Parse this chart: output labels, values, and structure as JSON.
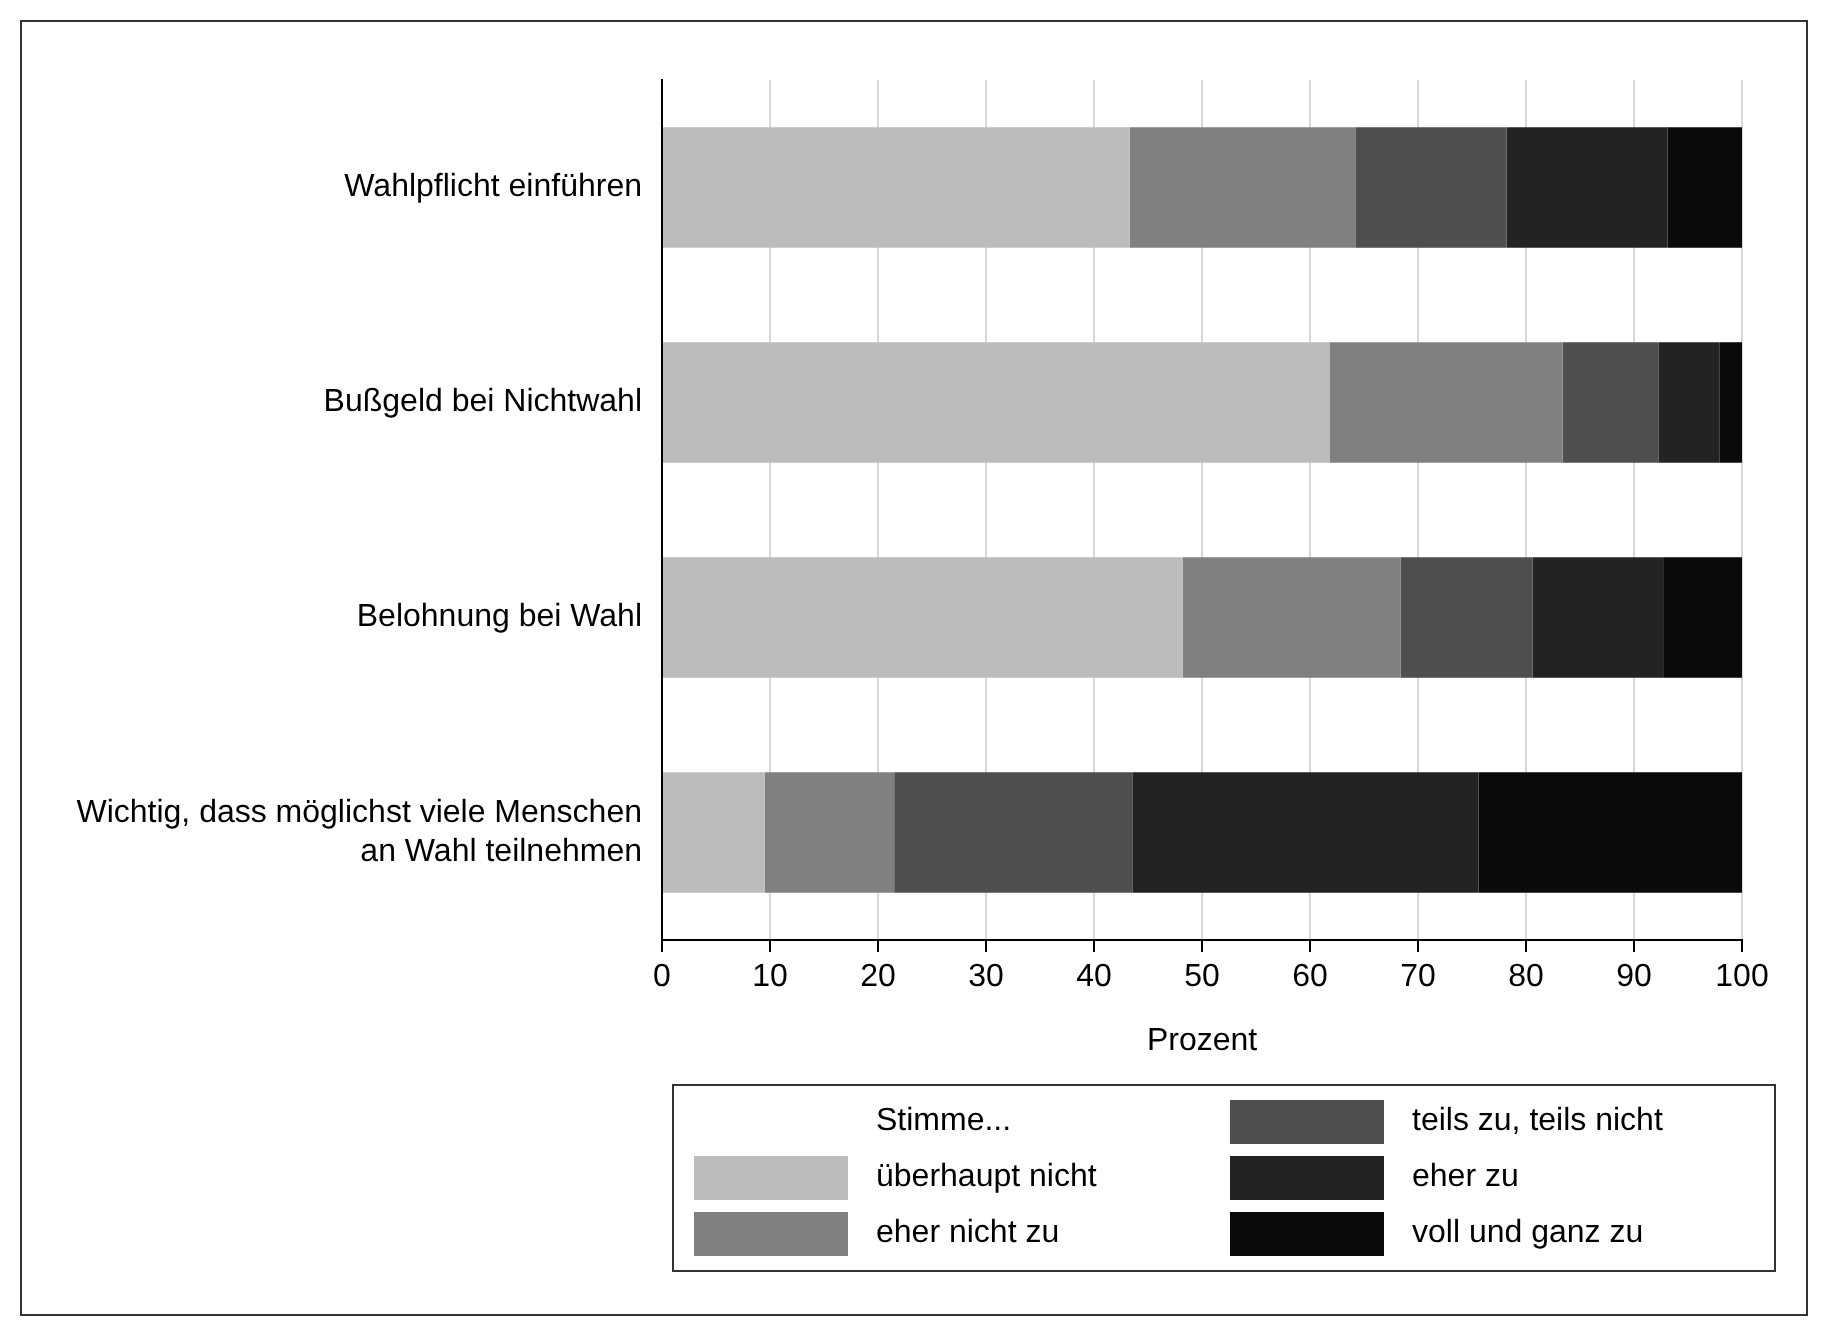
{
  "chart_data": {
    "type": "bar",
    "orientation": "horizontal",
    "stacked": true,
    "categories": [
      "Wahlpflicht einführen",
      "Bußgeld bei Nichtwahl",
      "Belohnung bei Wahl",
      "Wichtig, dass möglichst viele Menschen an Wahl teilnehmen"
    ],
    "series": [
      {
        "name": "überhaupt nicht",
        "color": "#bcbcbc",
        "values": [
          43.3,
          61.8,
          48.2,
          9.5
        ]
      },
      {
        "name": "eher nicht zu",
        "color": "#808080",
        "values": [
          20.9,
          21.6,
          20.2,
          12.0
        ]
      },
      {
        "name": "teils zu, teils nicht",
        "color": "#4e4e4e",
        "values": [
          14.0,
          8.9,
          12.2,
          22.1
        ]
      },
      {
        "name": "eher zu",
        "color": "#232323",
        "values": [
          14.9,
          5.6,
          12.1,
          32.0
        ]
      },
      {
        "name": "voll und ganz zu",
        "color": "#0a0a0a",
        "values": [
          6.9,
          2.1,
          7.3,
          24.4
        ]
      }
    ],
    "xlabel": "Prozent",
    "xlim": [
      0,
      100
    ],
    "xticks": [
      0,
      10,
      20,
      30,
      40,
      50,
      60,
      70,
      80,
      90,
      100
    ],
    "grid": "x",
    "legend": "bottom",
    "legend_title": "Stimme..."
  }
}
